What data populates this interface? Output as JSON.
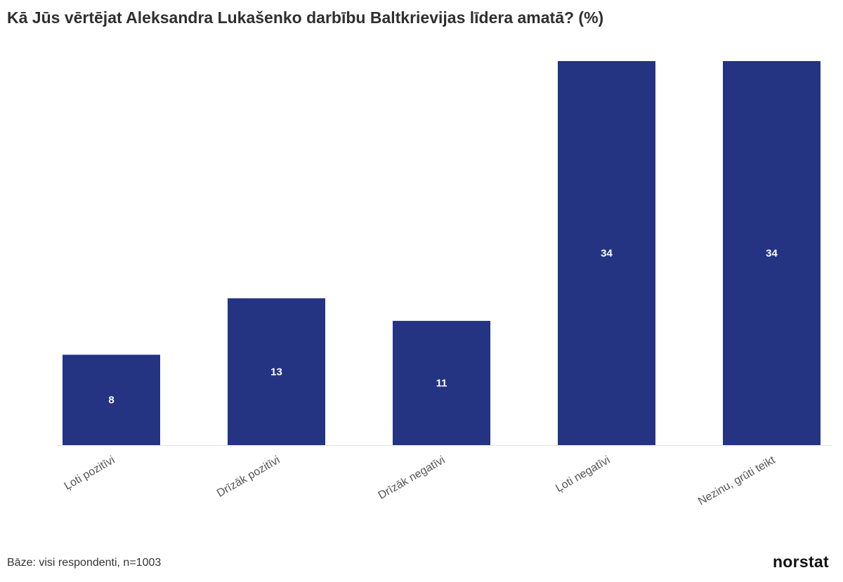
{
  "chart_data": {
    "type": "bar",
    "title": "Kā Jūs vērtējat Aleksandra Lukašenko darbību Baltkrievijas līdera amatā? (%)",
    "categories": [
      "Ļoti pozitīvi",
      "Drīzāk pozitīvi",
      "Drīzāk negatīvi",
      "Ļoti negatīvi",
      "Nezinu, grūti teikt"
    ],
    "values": [
      8,
      13,
      11,
      34,
      34
    ],
    "ylim": [
      0,
      34
    ],
    "grid": false,
    "data_labels": true,
    "colors": {
      "bar": "#243483",
      "label": "#ffffff"
    }
  },
  "footer": {
    "base_note": "Bāze: visi respondenti, n=1003",
    "brand": "norstat"
  }
}
